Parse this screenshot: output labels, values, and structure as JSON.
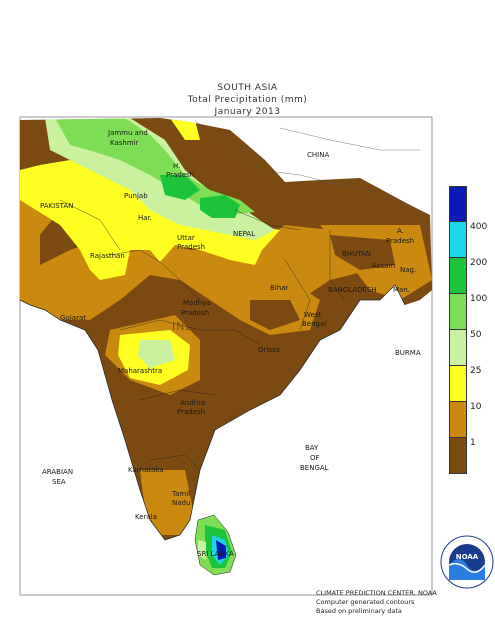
{
  "header": {
    "region": "SOUTH ASIA",
    "subtitle": "Total Precipitation (mm)",
    "period": "January 2013"
  },
  "legend": {
    "levels": [
      "400",
      "200",
      "100",
      "50",
      "25",
      "10",
      "1"
    ],
    "colors": [
      "#0a1bb5",
      "#1ed5e6",
      "#1cc43b",
      "#7fdc55",
      "#c9f1a0",
      "#ffff22",
      "#c98a0f",
      "#7a4a12"
    ]
  },
  "labels": {
    "china": "CHINA",
    "pakistan": "PAKISTAN",
    "jammu": "Jammu and",
    "kashmir": "Kashmir",
    "himachal1": "H.",
    "himachal2": "Pradesh",
    "punjab": "Punjab",
    "haryana": "Har.",
    "uttar1": "Uttar",
    "uttar2": "Pradesh",
    "nepal": "NEPAL",
    "bhutan": "BHUTAN",
    "arunachal1": "A.",
    "arunachal2": "Pradesh",
    "assam": "Assam",
    "nag": "Nag.",
    "rajasthan": "Rajasthan",
    "bihar": "Bihar",
    "bangladesh": "BANGLADESH",
    "man": "Man.",
    "gujarat": "Gujarat",
    "madhya1": "Madhya",
    "madhya2": "Pradesh",
    "westbengal1": "West",
    "westbengal2": "Bengal",
    "india": "INDIA",
    "burma": "BURMA",
    "orissa": "Orissa",
    "maharashtra": "Maharashtra",
    "andhra1": "Andhra",
    "andhra2": "Pradesh",
    "arabian1": "ARABIAN",
    "arabian2": "SEA",
    "bay1": "BAY",
    "bay2": "OF",
    "bay3": "BENGAL",
    "karnataka": "Karnataka",
    "tamil1": "Tamil",
    "tamil2": "Nadu",
    "kerala": "Kerala",
    "srilanka": "SRI LANKA"
  },
  "credits": {
    "line1": "CLIMATE PREDICTION CENTER, NOAA",
    "line2": "Computer generated contours",
    "line3": "Based on preliminary data"
  },
  "logo": {
    "text": "NOAA"
  }
}
